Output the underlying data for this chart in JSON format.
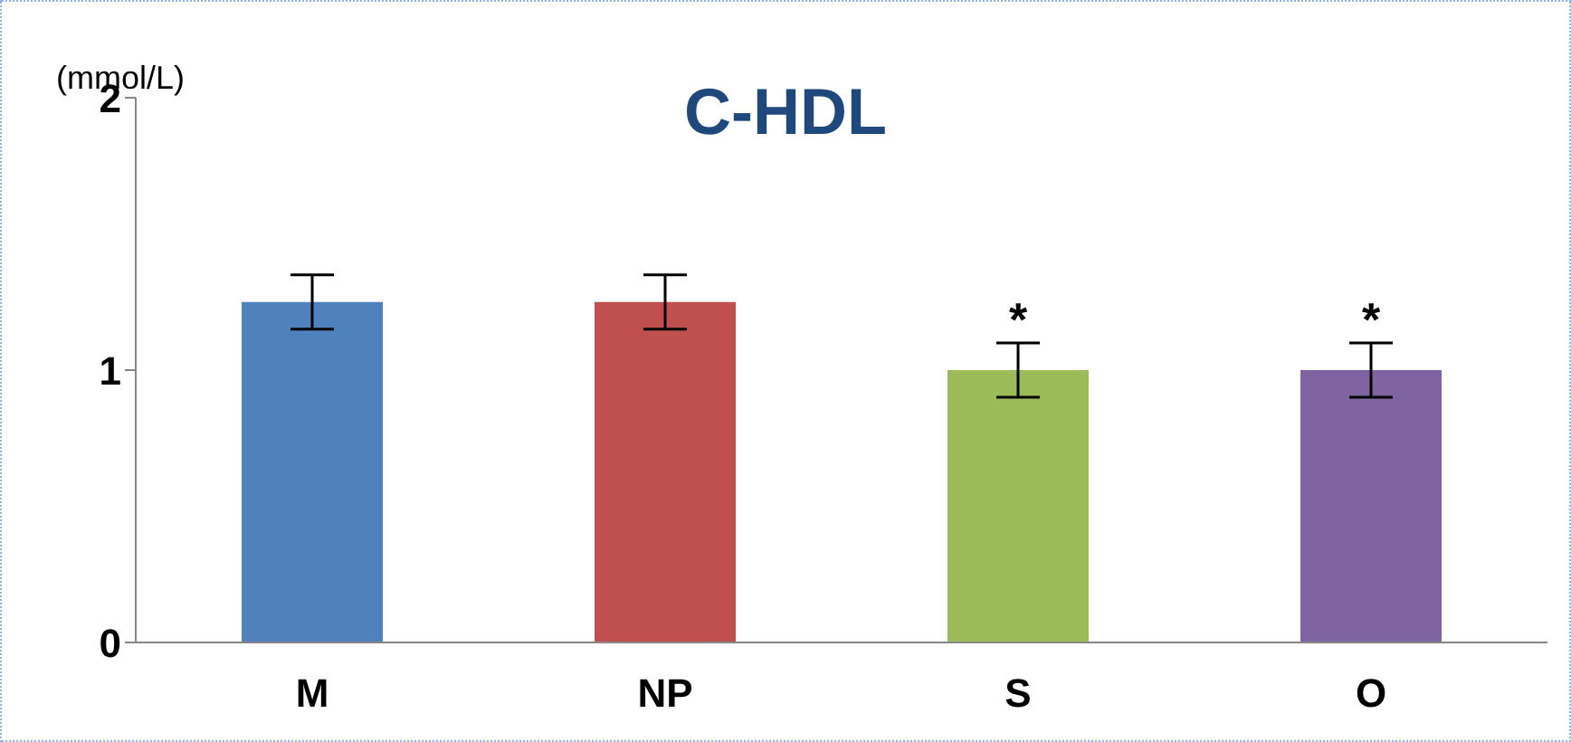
{
  "chart_data": {
    "type": "bar",
    "title": "C-HDL",
    "ylabel": "(mmol/L)",
    "categories": [
      "M",
      "NP",
      "S",
      "O"
    ],
    "values": [
      1.25,
      1.25,
      1.0,
      1.0
    ],
    "colors": [
      "#4f81bd",
      "#c0504d",
      "#9bbb59",
      "#8064a2"
    ],
    "errors": [
      0.1,
      0.1,
      0.1,
      0.1
    ],
    "ylim": [
      0,
      2
    ],
    "yticks": [
      0,
      1,
      2
    ],
    "grid": false,
    "legend": false,
    "annotations": [
      "*",
      "*"
    ]
  }
}
